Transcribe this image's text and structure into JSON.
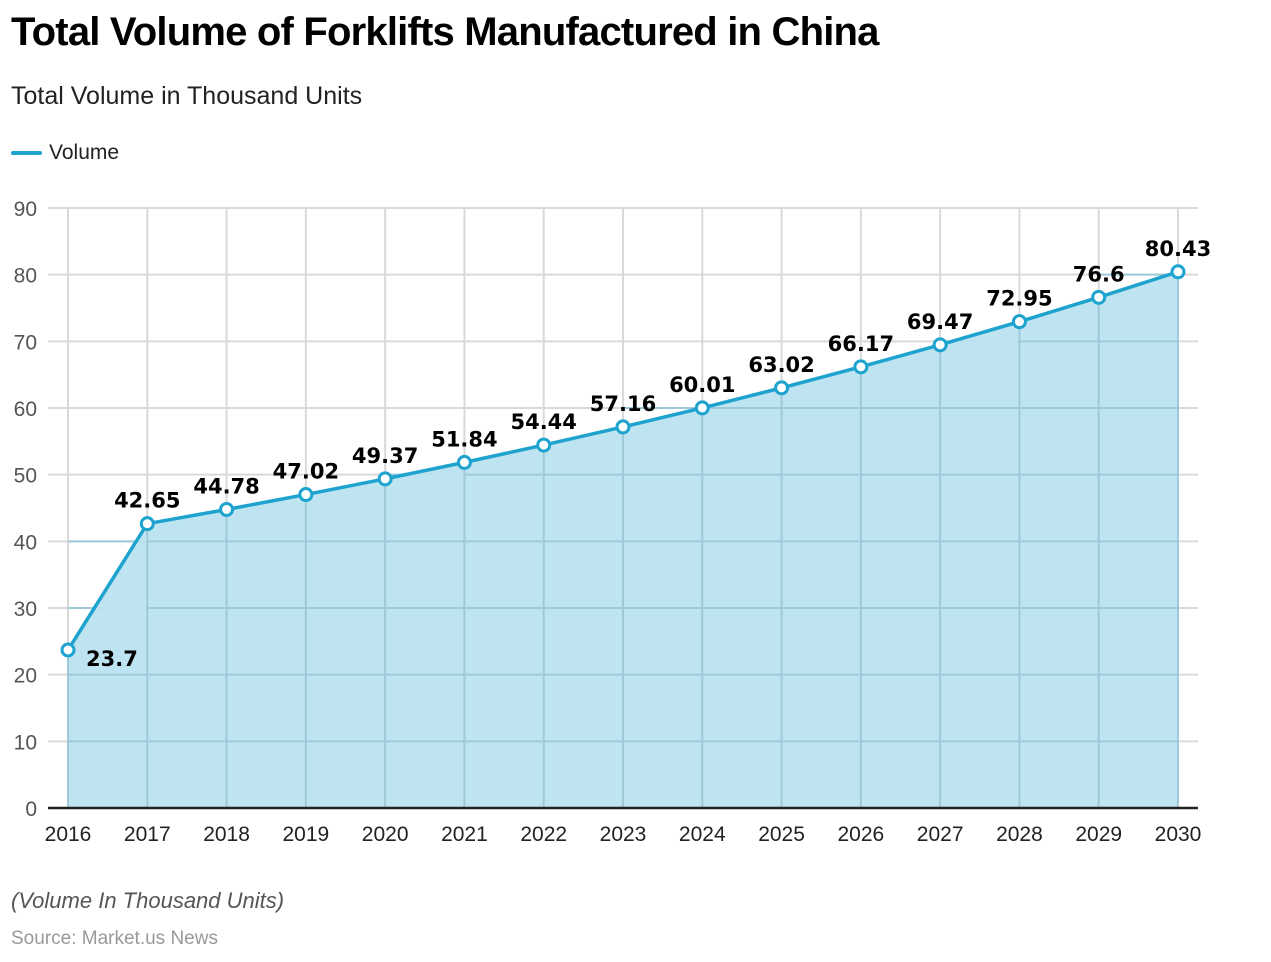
{
  "chart_data": {
    "type": "area",
    "title": "Total Volume of Forklifts Manufactured in China",
    "subtitle": "Total Volume in Thousand Units",
    "xlabel": "",
    "ylabel": "",
    "categories": [
      "2016",
      "2017",
      "2018",
      "2019",
      "2020",
      "2021",
      "2022",
      "2023",
      "2024",
      "2025",
      "2026",
      "2027",
      "2028",
      "2029",
      "2030"
    ],
    "series": [
      {
        "name": "Volume",
        "values": [
          23.7,
          42.65,
          44.78,
          47.02,
          49.37,
          51.84,
          54.44,
          57.16,
          60.01,
          63.02,
          66.17,
          69.47,
          72.95,
          76.6,
          80.43
        ],
        "labels": [
          "23.7",
          "42.65",
          "44.78",
          "47.02",
          "49.37",
          "51.84",
          "54.44",
          "57.16",
          "60.01",
          "63.02",
          "66.17",
          "69.47",
          "72.95",
          "76.6",
          "80.43"
        ],
        "color": "#1ea3cf",
        "fill_color": "#b8e1f0"
      }
    ],
    "ylim": [
      0,
      90
    ],
    "yticks": [
      "0",
      "10",
      "20",
      "30",
      "40",
      "50",
      "60",
      "70",
      "80",
      "90"
    ],
    "grid": true,
    "legend_position": "top-left",
    "footnote": "(Volume In Thousand Units)",
    "source": "Source: Market.us News"
  }
}
